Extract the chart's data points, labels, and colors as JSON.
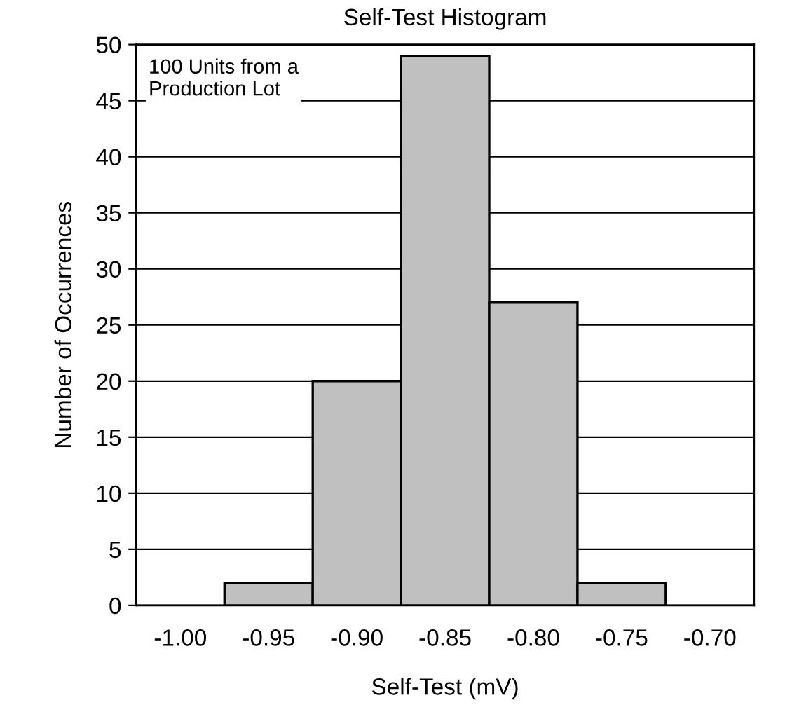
{
  "chart_data": {
    "type": "bar",
    "title": "Self-Test Histogram",
    "xlabel": "Self-Test (mV)",
    "ylabel": "Number of Occurrences",
    "categories": [
      "-1.00",
      "-0.95",
      "-0.90",
      "-0.85",
      "-0.80",
      "-0.75",
      "-0.70"
    ],
    "values": [
      0,
      2,
      20,
      49,
      27,
      2,
      0
    ],
    "color": "#c0c0c0",
    "ylim": [
      0,
      50
    ],
    "yticks": [
      0,
      5,
      10,
      15,
      20,
      25,
      30,
      35,
      40,
      45,
      50
    ],
    "grid": "y",
    "annotations": [
      "100 Units from a\nProduction Lot"
    ]
  }
}
